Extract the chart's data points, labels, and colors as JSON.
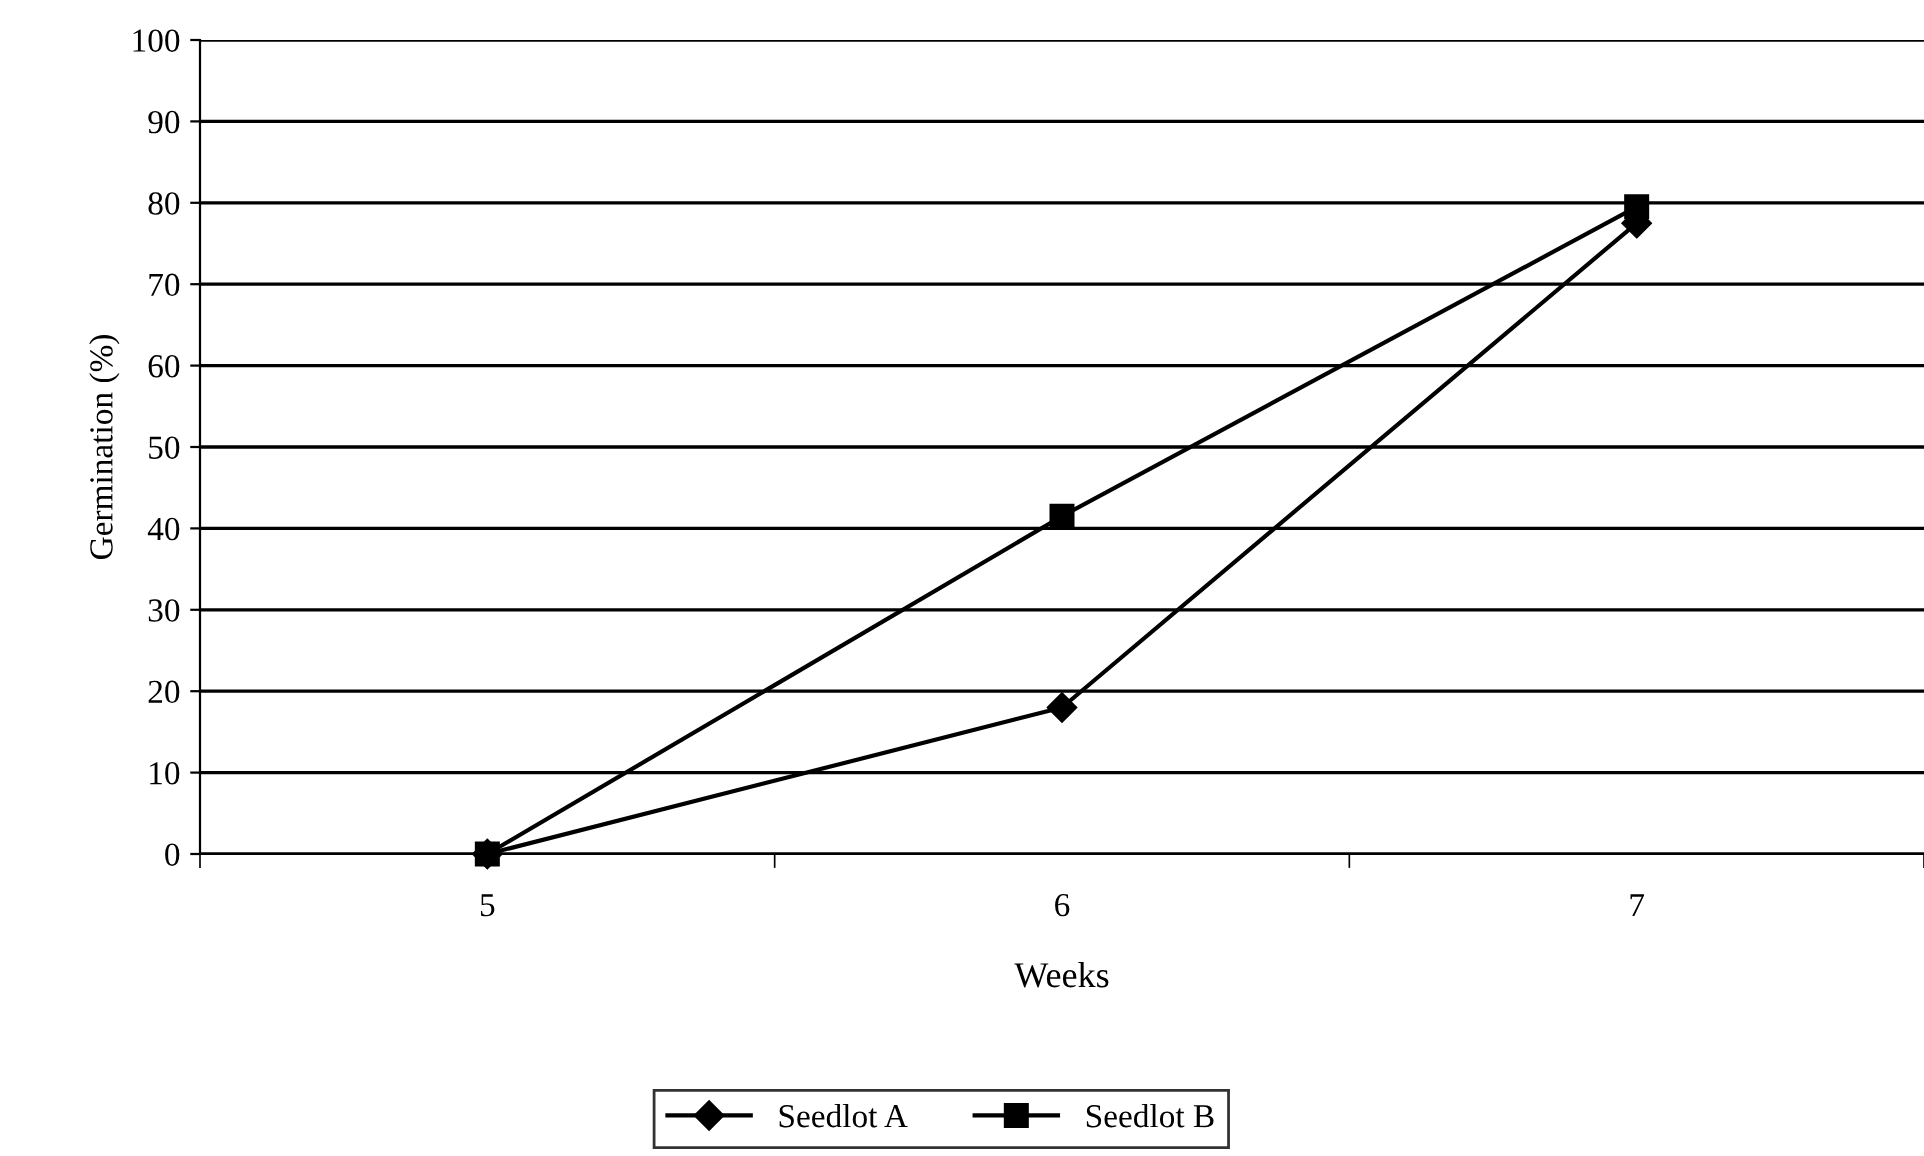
{
  "chart_data": {
    "type": "line",
    "xlabel": "Weeks",
    "ylabel": "Germination (%)",
    "categories": [
      "5",
      "6",
      "7"
    ],
    "series": [
      {
        "name": "Seedlot A",
        "color": "#000000",
        "marker": "diamond",
        "values": [
          0,
          18,
          77.5
        ]
      },
      {
        "name": "Seedlot B",
        "color": "#000000",
        "marker": "square",
        "values": [
          0,
          41.5,
          79.5
        ]
      }
    ],
    "ylim": [
      0,
      100
    ],
    "yticks": [
      0,
      10,
      20,
      30,
      40,
      50,
      60,
      70,
      80,
      90,
      100
    ],
    "grid": "y",
    "legend": "bottom",
    "line_style": "solid"
  }
}
